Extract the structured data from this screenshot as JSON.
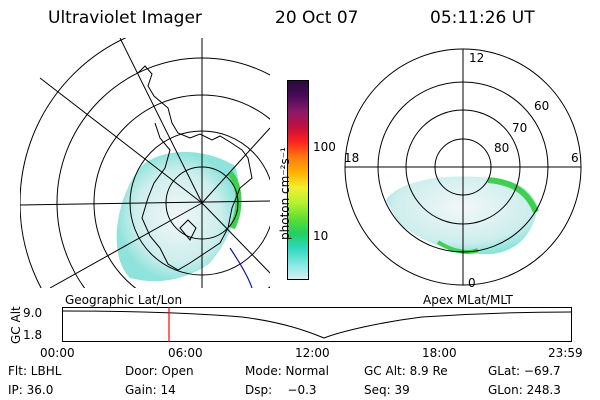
{
  "header": {
    "title": "Ultraviolet Imager",
    "date": "20 Oct 07",
    "time": "05:11:26 UT"
  },
  "colorbar": {
    "unit_label": "photon cm⁻²s⁻¹",
    "ticks": [
      "100",
      "10"
    ],
    "colors": [
      "#2a0a3a",
      "#4a0a5a",
      "#8a1a6a",
      "#c01040",
      "#ff2020",
      "#ff7a10",
      "#ffb000",
      "#f0f030",
      "#b8f030",
      "#60e030",
      "#20d060",
      "#30d8c0",
      "#80e8e0",
      "#d8f0f0"
    ]
  },
  "left_map": {
    "label": "Geographic Lat/Lon"
  },
  "right_map": {
    "label": "Apex MLat/MLT",
    "mlt_labels": {
      "top": "12",
      "left": "18",
      "right": "6",
      "bottom": "0"
    },
    "lat_labels": [
      "60",
      "70",
      "80"
    ]
  },
  "timeline": {
    "axis_label": "GC Alt",
    "y_labels": [
      "9.0",
      "1.8"
    ],
    "time_labels": [
      "00:00",
      "06:00",
      "12:00",
      "18:00",
      "23:59"
    ],
    "marker_color": "#ff0000"
  },
  "info": {
    "row1": {
      "flt": "Flt: LBHL",
      "door": "Door: Open",
      "mode": "Mode: Normal",
      "gcalt": "GC Alt: 8.9 Re",
      "glat": "GLat: −69.7"
    },
    "row2": {
      "ip": "IP: 36.0",
      "gain": "Gain: 14",
      "dsp": "Dsp:    −0.3",
      "seq": "Seq: 39",
      "glon": "GLon: 248.3"
    }
  }
}
